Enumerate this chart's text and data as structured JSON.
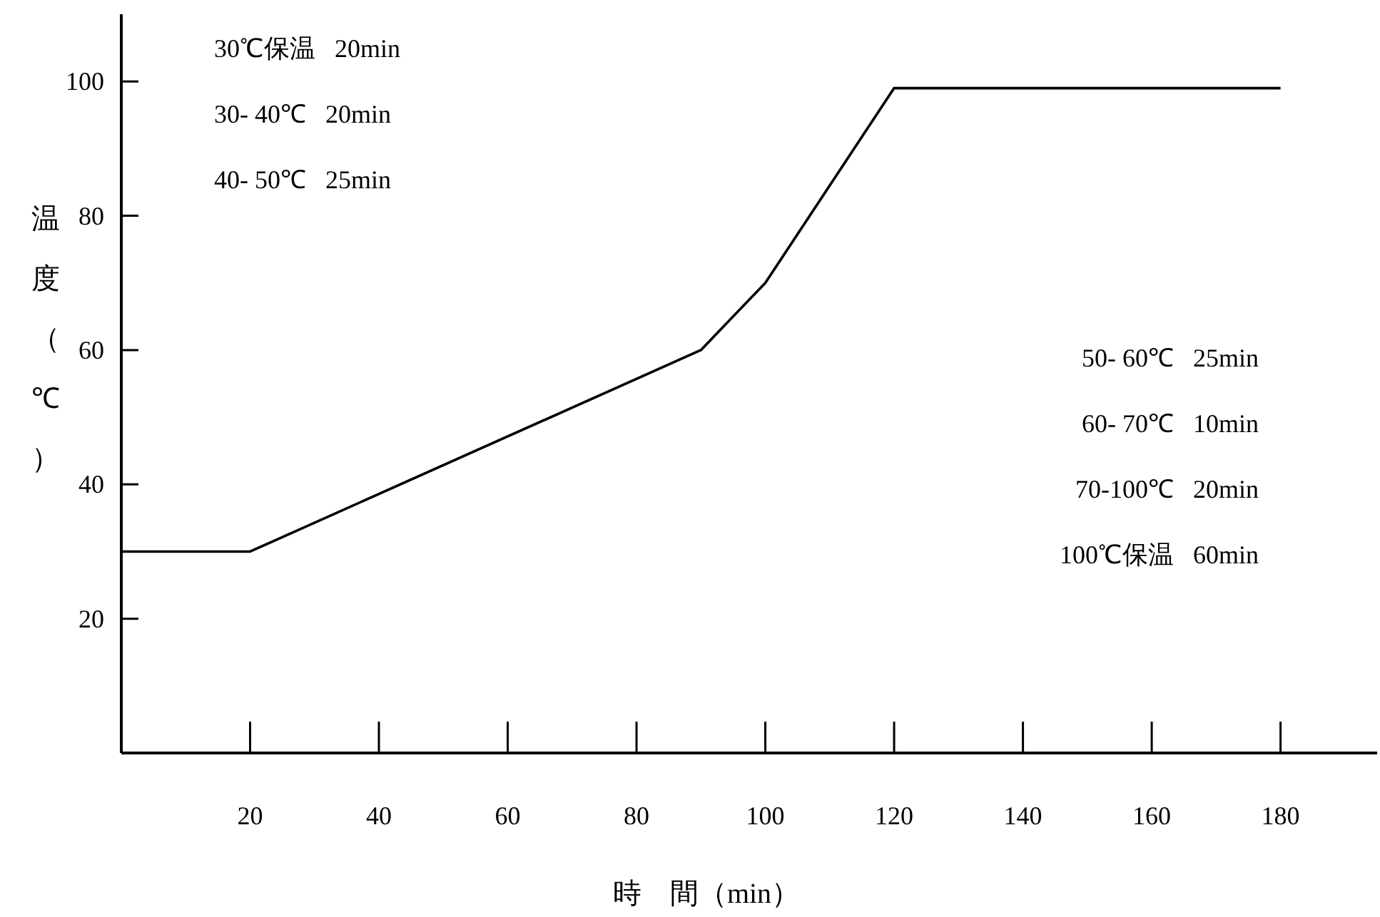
{
  "chart_data": {
    "type": "line",
    "xlabel": "時　間（min）",
    "ylabel": "温度（℃）",
    "x": [
      0,
      20,
      90,
      100,
      120,
      180
    ],
    "values": [
      30,
      30,
      60,
      70,
      99,
      99
    ],
    "color": "#000000",
    "xlim": [
      0,
      195
    ],
    "ylim": [
      0,
      110
    ],
    "xticks": [
      20,
      40,
      60,
      80,
      100,
      120,
      140,
      160,
      180
    ],
    "yticks": [
      20,
      40,
      60,
      80,
      100
    ],
    "annotations": [
      "30℃保温   20min",
      "30- 40℃   20min",
      "40- 50℃   25min",
      "50- 60℃   25min",
      "60- 70℃   10min",
      "70-100℃   20min",
      "100℃保温   60min"
    ]
  }
}
